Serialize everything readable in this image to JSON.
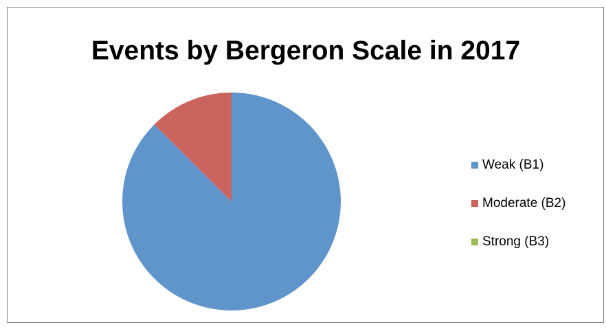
{
  "chart_data": {
    "type": "pie",
    "title": "Events by Bergeron Scale in 2017",
    "categories": [
      "Weak (B1)",
      "Moderate (B2)",
      "Strong (B3)"
    ],
    "values": [
      87.5,
      12.5,
      0
    ],
    "colors": [
      "#6095cb",
      "#cc645e",
      "#9bbb59"
    ],
    "legend": "right"
  }
}
